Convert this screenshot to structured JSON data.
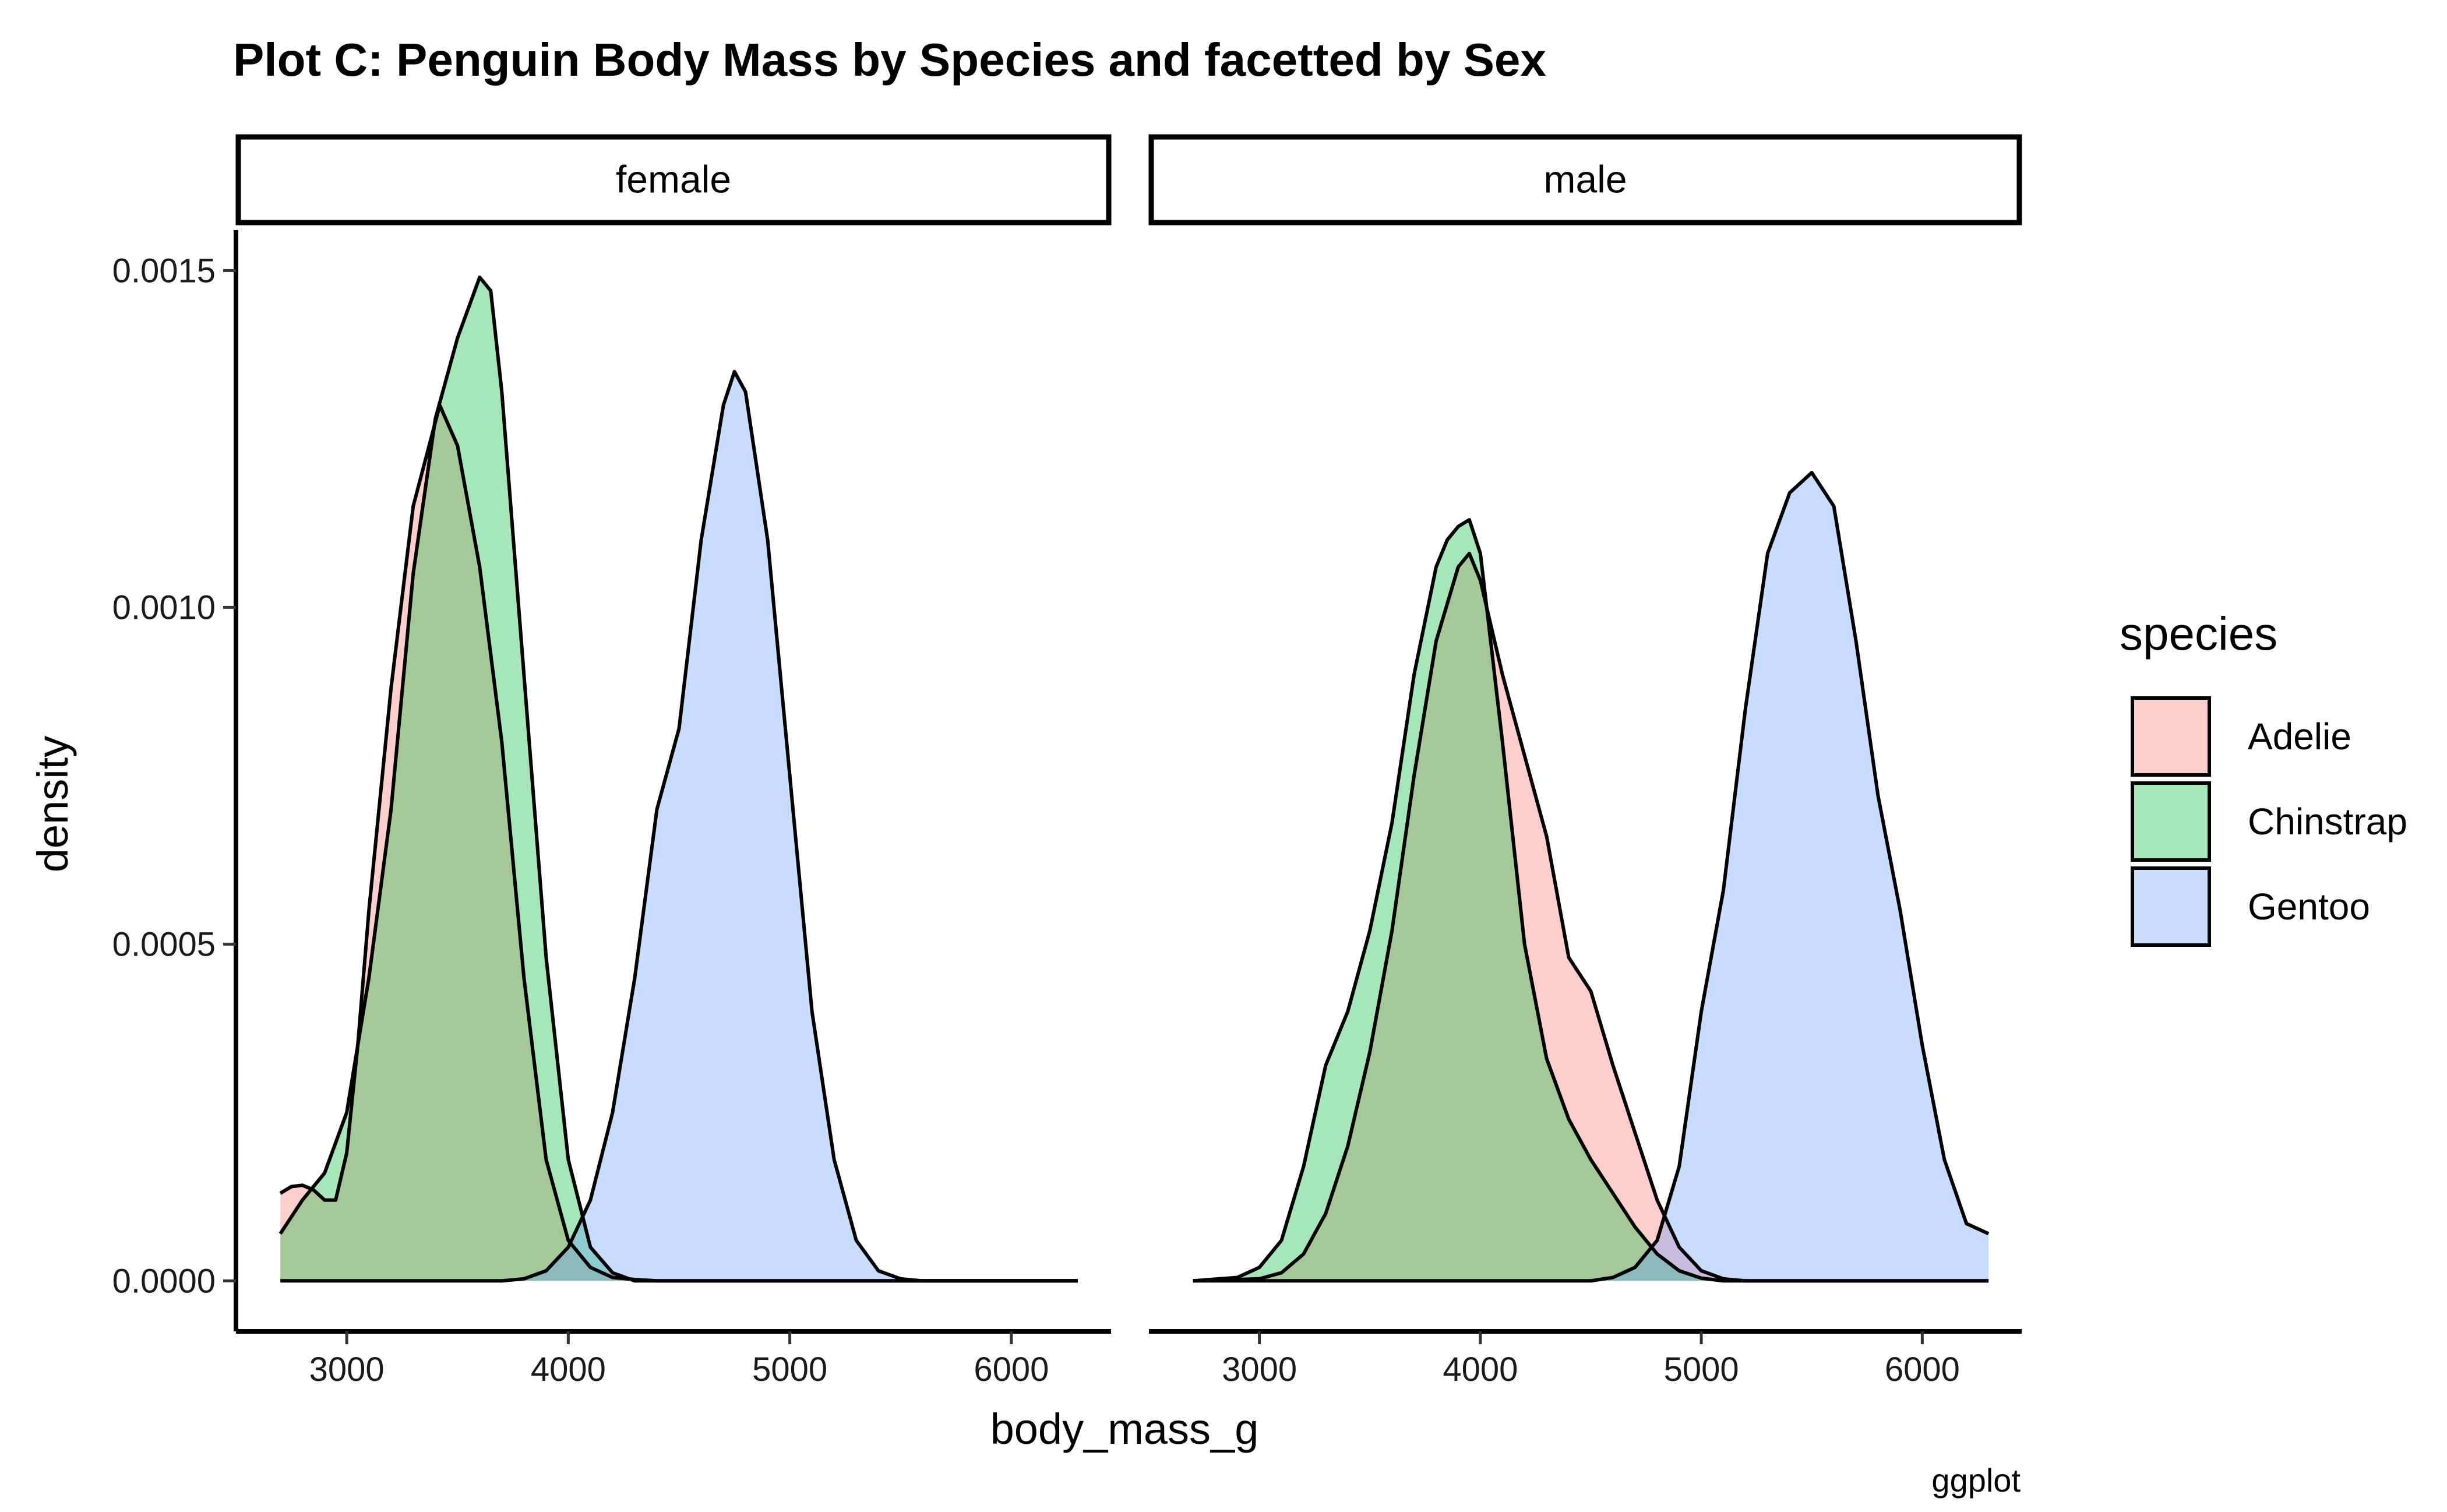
{
  "chart_data": {
    "type": "area",
    "title": "Plot C: Penguin Body Mass by Species and facetted by Sex",
    "xlabel": "body_mass_g",
    "ylabel": "density",
    "caption": "ggplot",
    "xlim": [
      2500,
      6450
    ],
    "ylim": [
      -7.5e-05,
      0.00156
    ],
    "x_ticks": [
      3000,
      4000,
      5000,
      6000
    ],
    "x_tick_labels": [
      "3000",
      "4000",
      "5000",
      "6000"
    ],
    "y_ticks": [
      0,
      0.0005,
      0.001,
      0.0015
    ],
    "y_tick_labels": [
      "0.0000",
      "0.0005",
      "0.0010",
      "0.0015"
    ],
    "grid": false,
    "legend": {
      "title": "species",
      "placement": "right",
      "entries": [
        {
          "label": "Adelie",
          "color": "#f8766d"
        },
        {
          "label": "Chinstrap",
          "color": "#00ba38"
        },
        {
          "label": "Gentoo",
          "color": "#619cff"
        }
      ]
    },
    "fill_alpha": 0.35,
    "panels": [
      {
        "strip": "female",
        "series": [
          {
            "name": "Adelie",
            "x": [
              2700,
              2750,
              2800,
              2850,
              2900,
              2950,
              3000,
              3050,
              3100,
              3200,
              3300,
              3420,
              3500,
              3600,
              3700,
              3800,
              3900,
              4000,
              4100,
              4200,
              4300,
              4400,
              4500,
              6300
            ],
            "y": [
              0.00013,
              0.00014,
              0.000142,
              0.000135,
              0.00012,
              0.00012,
              0.00019,
              0.00035,
              0.00055,
              0.00088,
              0.00115,
              0.0013,
              0.00124,
              0.00106,
              0.0008,
              0.00045,
              0.00018,
              6e-05,
              2e-05,
              5e-06,
              2e-06,
              0,
              0,
              0
            ]
          },
          {
            "name": "Chinstrap",
            "x": [
              2700,
              2800,
              2900,
              3000,
              3100,
              3200,
              3300,
              3400,
              3500,
              3600,
              3650,
              3700,
              3800,
              3900,
              4000,
              4100,
              4200,
              4300,
              6300
            ],
            "y": [
              7e-05,
              0.00012,
              0.00016,
              0.00025,
              0.00045,
              0.0007,
              0.00105,
              0.00128,
              0.0014,
              0.00149,
              0.00147,
              0.00132,
              0.0009,
              0.00048,
              0.00018,
              5e-05,
              1.2e-05,
              0,
              0
            ]
          },
          {
            "name": "Gentoo",
            "x": [
              2700,
              3700,
              3800,
              3900,
              4000,
              4100,
              4200,
              4300,
              4400,
              4500,
              4600,
              4700,
              4750,
              4800,
              4900,
              5000,
              5100,
              5200,
              5300,
              5400,
              5500,
              5600,
              6300
            ],
            "y": [
              0,
              0,
              3e-06,
              1.5e-05,
              5e-05,
              0.00012,
              0.00025,
              0.00045,
              0.0007,
              0.00082,
              0.0011,
              0.0013,
              0.00135,
              0.00132,
              0.0011,
              0.00075,
              0.0004,
              0.00018,
              6e-05,
              1.5e-05,
              3e-06,
              0,
              0
            ]
          }
        ]
      },
      {
        "strip": "male",
        "series": [
          {
            "name": "Adelie",
            "x": [
              2700,
              3000,
              3100,
              3200,
              3300,
              3400,
              3500,
              3600,
              3700,
              3800,
              3900,
              3950,
              4000,
              4100,
              4200,
              4300,
              4400,
              4500,
              4600,
              4700,
              4800,
              4900,
              5000,
              5100,
              5200,
              6300
            ],
            "y": [
              0,
              3e-06,
              1.2e-05,
              4e-05,
              0.0001,
              0.0002,
              0.00034,
              0.00052,
              0.00075,
              0.00095,
              0.00106,
              0.00108,
              0.00104,
              0.0009,
              0.00078,
              0.00066,
              0.00048,
              0.00043,
              0.00032,
              0.00022,
              0.00012,
              5e-05,
              1.5e-05,
              3e-06,
              0,
              0
            ]
          },
          {
            "name": "Chinstrap",
            "x": [
              2700,
              2900,
              3000,
              3100,
              3200,
              3300,
              3400,
              3500,
              3600,
              3700,
              3800,
              3850,
              3900,
              3950,
              4000,
              4100,
              4200,
              4300,
              4400,
              4500,
              4600,
              4700,
              4800,
              4900,
              5000,
              5100,
              6300
            ],
            "y": [
              0,
              5e-06,
              2e-05,
              6e-05,
              0.00017,
              0.00032,
              0.0004,
              0.00052,
              0.00068,
              0.0009,
              0.00106,
              0.0011,
              0.00112,
              0.00113,
              0.00108,
              0.0008,
              0.0005,
              0.00033,
              0.00024,
              0.00018,
              0.00013,
              8e-05,
              4e-05,
              1.5e-05,
              4e-06,
              0,
              0
            ]
          },
          {
            "name": "Gentoo",
            "x": [
              2700,
              4500,
              4600,
              4700,
              4800,
              4900,
              5000,
              5100,
              5200,
              5300,
              5400,
              5500,
              5600,
              5700,
              5800,
              5900,
              6000,
              6100,
              6200,
              6300
            ],
            "y": [
              0,
              0,
              5e-06,
              2e-05,
              6e-05,
              0.00017,
              0.0004,
              0.00058,
              0.00085,
              0.00108,
              0.00117,
              0.0012,
              0.00115,
              0.00095,
              0.00072,
              0.00055,
              0.00035,
              0.00018,
              8.5e-05,
              7e-05
            ]
          }
        ]
      }
    ]
  }
}
